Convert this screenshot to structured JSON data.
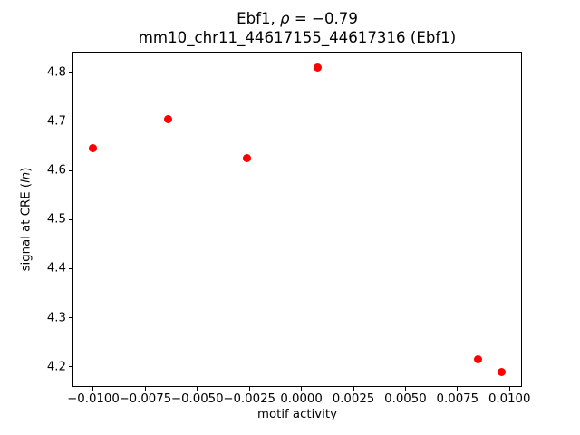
{
  "figure": {
    "background_color": "#ffffff",
    "text_color": "#000000",
    "title": {
      "line1_prefix": "Ebf1, ",
      "line1_rho": "ρ",
      "line1_suffix": " = −0.79",
      "line2": "mm10_chr11_44617155_44617316 (Ebf1)"
    },
    "xlabel": "motif activity",
    "ylabel": {
      "prefix": "signal at CRE (",
      "italic": "ln",
      "suffix": ")"
    }
  },
  "chart_data": {
    "type": "scatter",
    "title": "Ebf1, ρ = −0.79\nmm10_chr11_44617155_44617316 (Ebf1)",
    "xlabel": "motif activity",
    "ylabel": "signal at CRE (ln)",
    "marker_color": "#ff0000",
    "marker_diameter_px": 9,
    "grid": false,
    "legend": null,
    "points": [
      {
        "x": -0.01,
        "y": 4.645
      },
      {
        "x": -0.0064,
        "y": 4.705
      },
      {
        "x": -0.0026,
        "y": 4.625
      },
      {
        "x": 0.0008,
        "y": 4.81
      },
      {
        "x": 0.0085,
        "y": 4.215
      },
      {
        "x": 0.0096,
        "y": 4.19
      }
    ],
    "xlim": [
      -0.011,
      0.0106
    ],
    "ylim": [
      4.159,
      4.842
    ],
    "xticks": [
      -0.01,
      -0.0075,
      -0.005,
      -0.0025,
      0.0,
      0.0025,
      0.005,
      0.0075,
      0.01
    ],
    "xtick_labels": [
      "−0.0100",
      "−0.0075",
      "−0.0050",
      "−0.0025",
      "0.0000",
      "0.0025",
      "0.0050",
      "0.0075",
      "0.0100"
    ],
    "yticks": [
      4.2,
      4.3,
      4.4,
      4.5,
      4.6,
      4.7,
      4.8
    ],
    "ytick_labels": [
      "4.2",
      "4.3",
      "4.4",
      "4.5",
      "4.6",
      "4.7",
      "4.8"
    ]
  }
}
